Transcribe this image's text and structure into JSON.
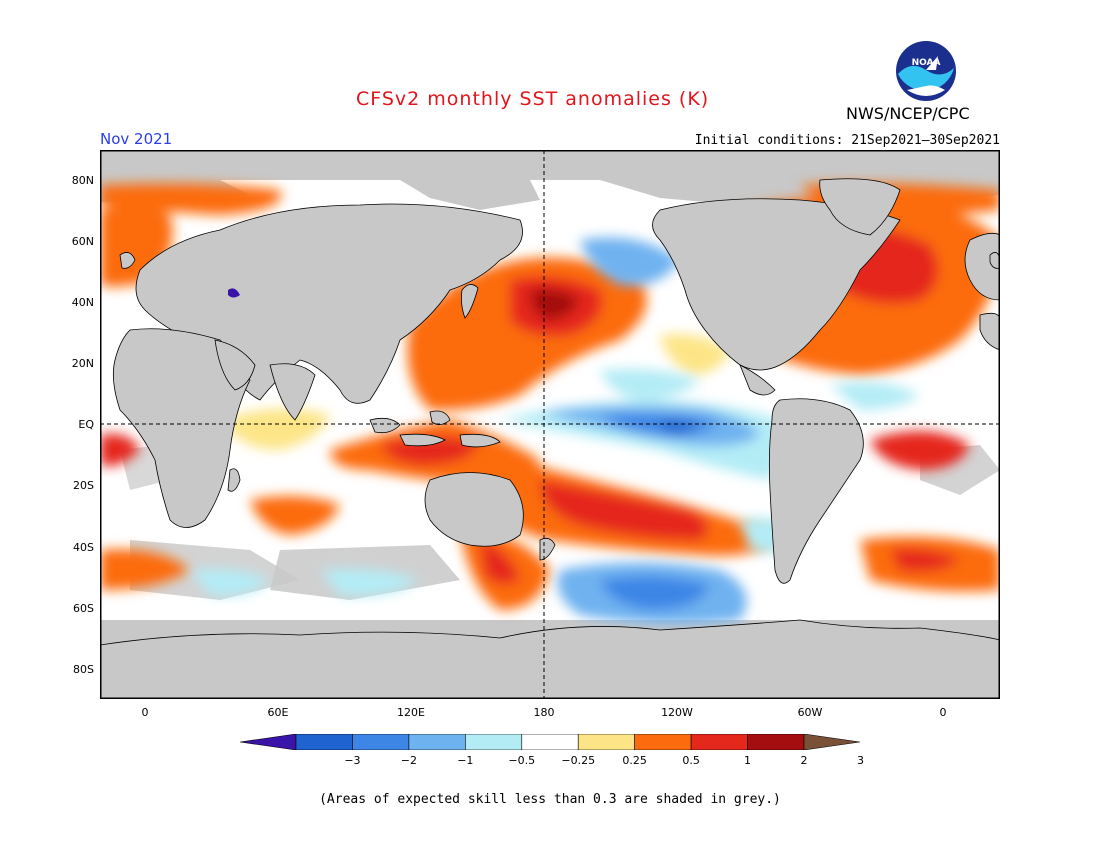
{
  "title": "CFSv2 monthly SST anomalies (K)",
  "agency": "NWS/NCEP/CPC",
  "logo_text": "NOAA",
  "forecast_month": "Nov 2021",
  "initial_conditions": "Initial conditions: 21Sep2021–30Sep2021",
  "latitude_labels": [
    "80N",
    "60N",
    "40N",
    "20N",
    "EQ",
    "20S",
    "40S",
    "60S",
    "80S"
  ],
  "longitude_labels": [
    "0",
    "60E",
    "120E",
    "180",
    "120W",
    "60W",
    "0"
  ],
  "colorbar": {
    "labels": [
      "−3",
      "−2",
      "−1",
      "−0.5",
      "−0.25",
      "0.25",
      "0.5",
      "1",
      "2",
      "3"
    ],
    "colors": [
      "#3a14a8",
      "#1e63cf",
      "#3d86e6",
      "#6fb2f0",
      "#b4ecf6",
      "#ffffff",
      "#fde587",
      "#fc6c0f",
      "#e5281c",
      "#a50e0e",
      "#7a5137"
    ]
  },
  "footnote": "(Areas of expected skill less than 0.3 are shaded in grey.)",
  "colors": {
    "land": "#c8c8c8",
    "skill_grey": "#c8c8c8",
    "title": "#e3141b",
    "month": "#2a3ee8"
  }
}
